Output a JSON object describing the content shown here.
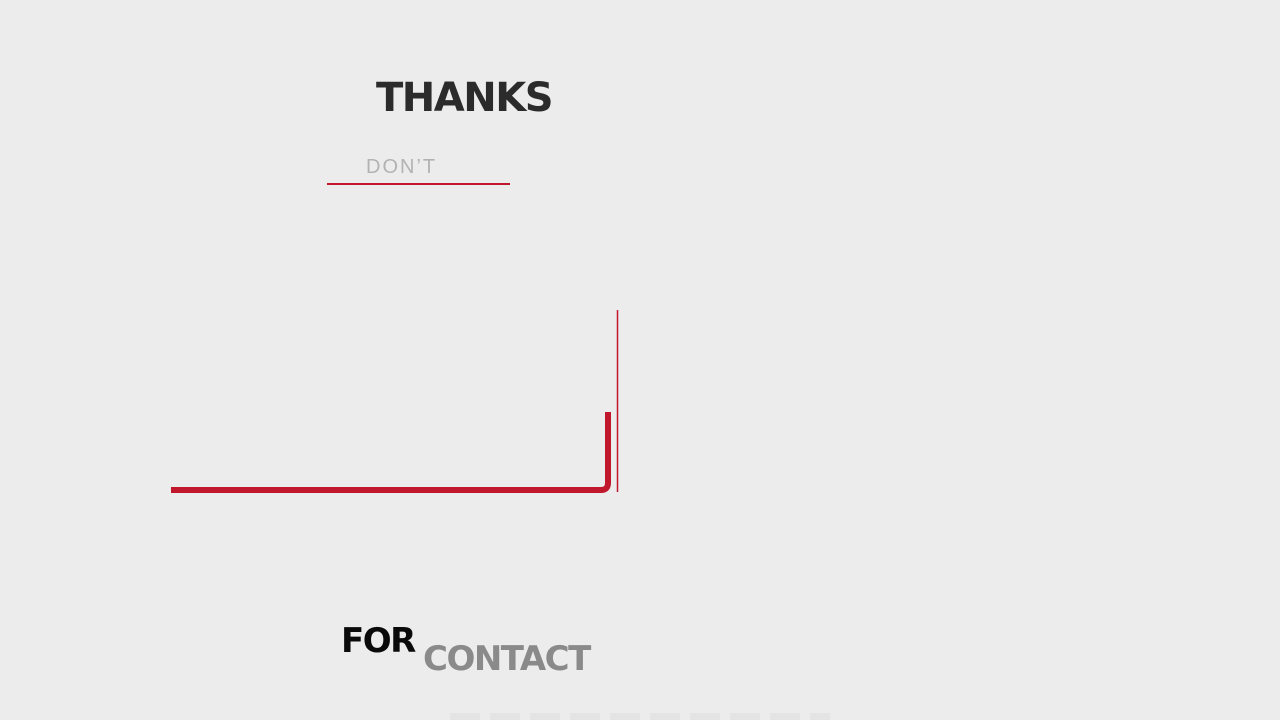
{
  "slide": {
    "heading": "THANKS",
    "subheading": "DON’T",
    "word_for": "FOR",
    "word_contact": "CONTACT"
  },
  "colors": {
    "background": "#ececec",
    "accent_red": "#c0172c",
    "heading_text": "#2b2b2b",
    "subheading_text": "#b3b3b3",
    "for_text": "#0a0a0a",
    "contact_text": "#8a8a8a"
  }
}
